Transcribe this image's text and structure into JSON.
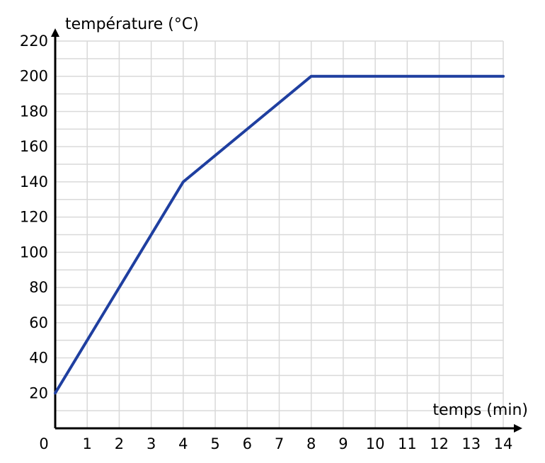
{
  "chart_data": {
    "type": "line",
    "xlabel": "temps (min)",
    "ylabel": "température (°C)",
    "xlim": [
      0,
      14
    ],
    "ylim": [
      0,
      220
    ],
    "x_ticks": [
      0,
      1,
      2,
      3,
      4,
      5,
      6,
      7,
      8,
      9,
      10,
      11,
      12,
      13,
      14
    ],
    "y_ticks": [
      20,
      40,
      60,
      80,
      100,
      120,
      140,
      160,
      180,
      200,
      220
    ],
    "grid": true,
    "x_minor_step": 1,
    "y_minor_step": 10,
    "series": [
      {
        "x": [
          0,
          4,
          8,
          14
        ],
        "y": [
          20,
          140,
          200,
          200
        ],
        "color": "#1f3fa0"
      }
    ]
  }
}
